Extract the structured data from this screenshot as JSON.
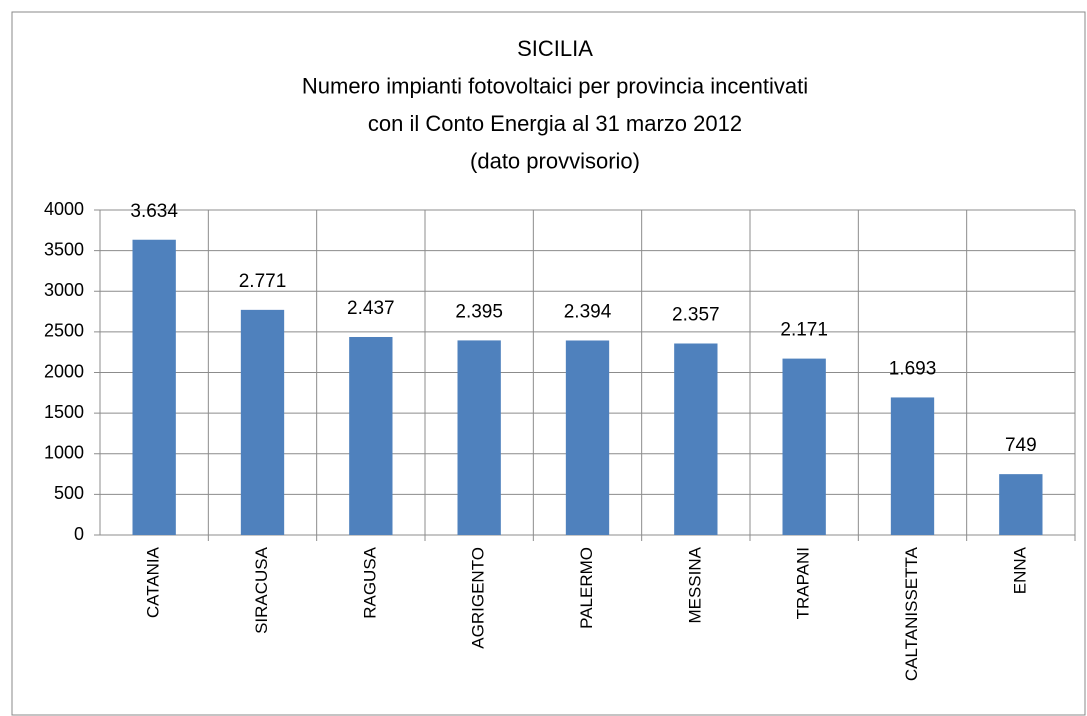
{
  "chart_data": {
    "type": "bar",
    "title": [
      "SICILIA",
      "Numero impianti fotovoltaici per provincia incentivati",
      "con il Conto Energia al 31 marzo 2012",
      "(dato provvisorio)"
    ],
    "categories": [
      "CATANIA",
      "SIRACUSA",
      "RAGUSA",
      "AGRIGENTO",
      "PALERMO",
      "MESSINA",
      "TRAPANI",
      "CALTANISSETTA",
      "ENNA"
    ],
    "values": [
      3634,
      2771,
      2437,
      2395,
      2394,
      2357,
      2171,
      1693,
      749
    ],
    "value_labels": [
      "3.634",
      "2.771",
      "2.437",
      "2.395",
      "2.394",
      "2.357",
      "2.171",
      "1.693",
      "749"
    ],
    "color": "#4f81bd",
    "ylim": [
      0,
      4000
    ],
    "yticks": [
      0,
      500,
      1000,
      1500,
      2000,
      2500,
      3000,
      3500,
      4000
    ],
    "grid": true
  }
}
